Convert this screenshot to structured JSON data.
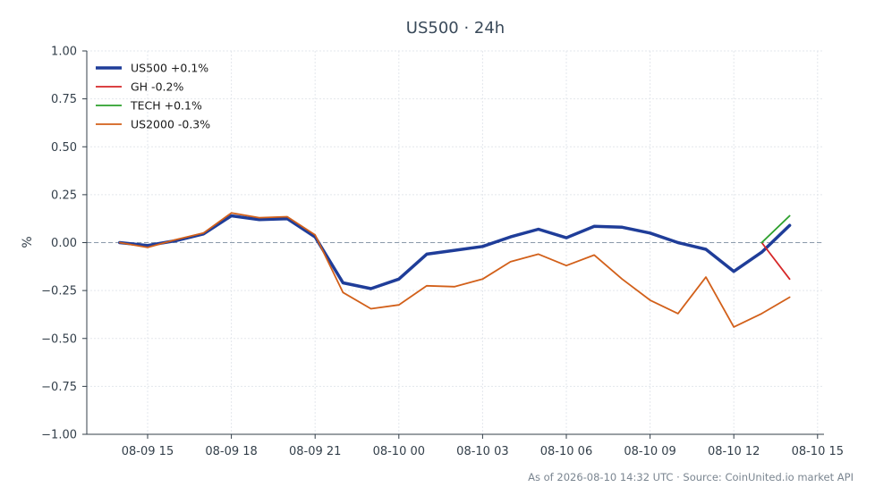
{
  "chart_data": {
    "type": "line",
    "title": "US500 · 24h",
    "xlabel": "",
    "ylabel": "%",
    "footer": "As of 2026-08-10 14:32 UTC · Source: CoinUnited.io market API",
    "x_tick_labels": [
      "08-09 15",
      "08-09 18",
      "08-09 21",
      "08-10 00",
      "08-10 03",
      "08-10 06",
      "08-10 09",
      "08-10 12",
      "08-10 15"
    ],
    "y_tick_labels": [
      "1.00",
      "0.75",
      "0.50",
      "0.25",
      "0.00",
      "−0.25",
      "−0.50",
      "−0.75",
      "−1.00"
    ],
    "ylim": [
      -1.0,
      1.0
    ],
    "grid": true,
    "legend_position": "top-left",
    "zero_line": true,
    "series": [
      {
        "name": "US500 +0.1%",
        "color": "#1f3d99",
        "width": "thick",
        "x": [
          "2026-08-09 14:00",
          "2026-08-09 15:00",
          "2026-08-09 16:00",
          "2026-08-09 17:00",
          "2026-08-09 18:00",
          "2026-08-09 19:00",
          "2026-08-09 20:00",
          "2026-08-09 21:00",
          "2026-08-09 22:00",
          "2026-08-09 23:00",
          "2026-08-10 00:00",
          "2026-08-10 01:00",
          "2026-08-10 02:00",
          "2026-08-10 03:00",
          "2026-08-10 04:00",
          "2026-08-10 05:00",
          "2026-08-10 06:00",
          "2026-08-10 07:00",
          "2026-08-10 08:00",
          "2026-08-10 09:00",
          "2026-08-10 10:00",
          "2026-08-10 11:00",
          "2026-08-10 12:00",
          "2026-08-10 13:00",
          "2026-08-10 14:00"
        ],
        "y": [
          0.0,
          -0.015,
          0.01,
          0.045,
          0.14,
          0.12,
          0.125,
          0.03,
          -0.21,
          -0.24,
          -0.19,
          -0.06,
          -0.04,
          -0.02,
          0.03,
          0.07,
          0.025,
          0.085,
          0.08,
          0.05,
          0.0,
          -0.035,
          -0.15,
          -0.05,
          0.09
        ]
      },
      {
        "name": "GH -0.2%",
        "color": "#d62728",
        "width": "thin",
        "x": [
          "2026-08-10 13:00",
          "2026-08-10 14:00"
        ],
        "y": [
          0.0,
          -0.19
        ]
      },
      {
        "name": "TECH +0.1%",
        "color": "#2ca02c",
        "width": "thin",
        "x": [
          "2026-08-10 13:00",
          "2026-08-10 14:00"
        ],
        "y": [
          0.0,
          0.14
        ]
      },
      {
        "name": "US2000 -0.3%",
        "color": "#d2601a",
        "width": "thin",
        "x": [
          "2026-08-09 14:00",
          "2026-08-09 15:00",
          "2026-08-09 16:00",
          "2026-08-09 17:00",
          "2026-08-09 18:00",
          "2026-08-09 19:00",
          "2026-08-09 20:00",
          "2026-08-09 21:00",
          "2026-08-09 22:00",
          "2026-08-09 23:00",
          "2026-08-10 00:00",
          "2026-08-10 01:00",
          "2026-08-10 02:00",
          "2026-08-10 03:00",
          "2026-08-10 04:00",
          "2026-08-10 05:00",
          "2026-08-10 06:00",
          "2026-08-10 07:00",
          "2026-08-10 08:00",
          "2026-08-10 09:00",
          "2026-08-10 10:00",
          "2026-08-10 11:00",
          "2026-08-10 12:00",
          "2026-08-10 13:00",
          "2026-08-10 14:00"
        ],
        "y": [
          0.0,
          -0.025,
          0.015,
          0.05,
          0.155,
          0.13,
          0.135,
          0.04,
          -0.26,
          -0.345,
          -0.325,
          -0.225,
          -0.23,
          -0.19,
          -0.1,
          -0.06,
          -0.12,
          -0.065,
          -0.19,
          -0.3,
          -0.37,
          -0.18,
          -0.44,
          -0.37,
          -0.285
        ]
      }
    ]
  }
}
